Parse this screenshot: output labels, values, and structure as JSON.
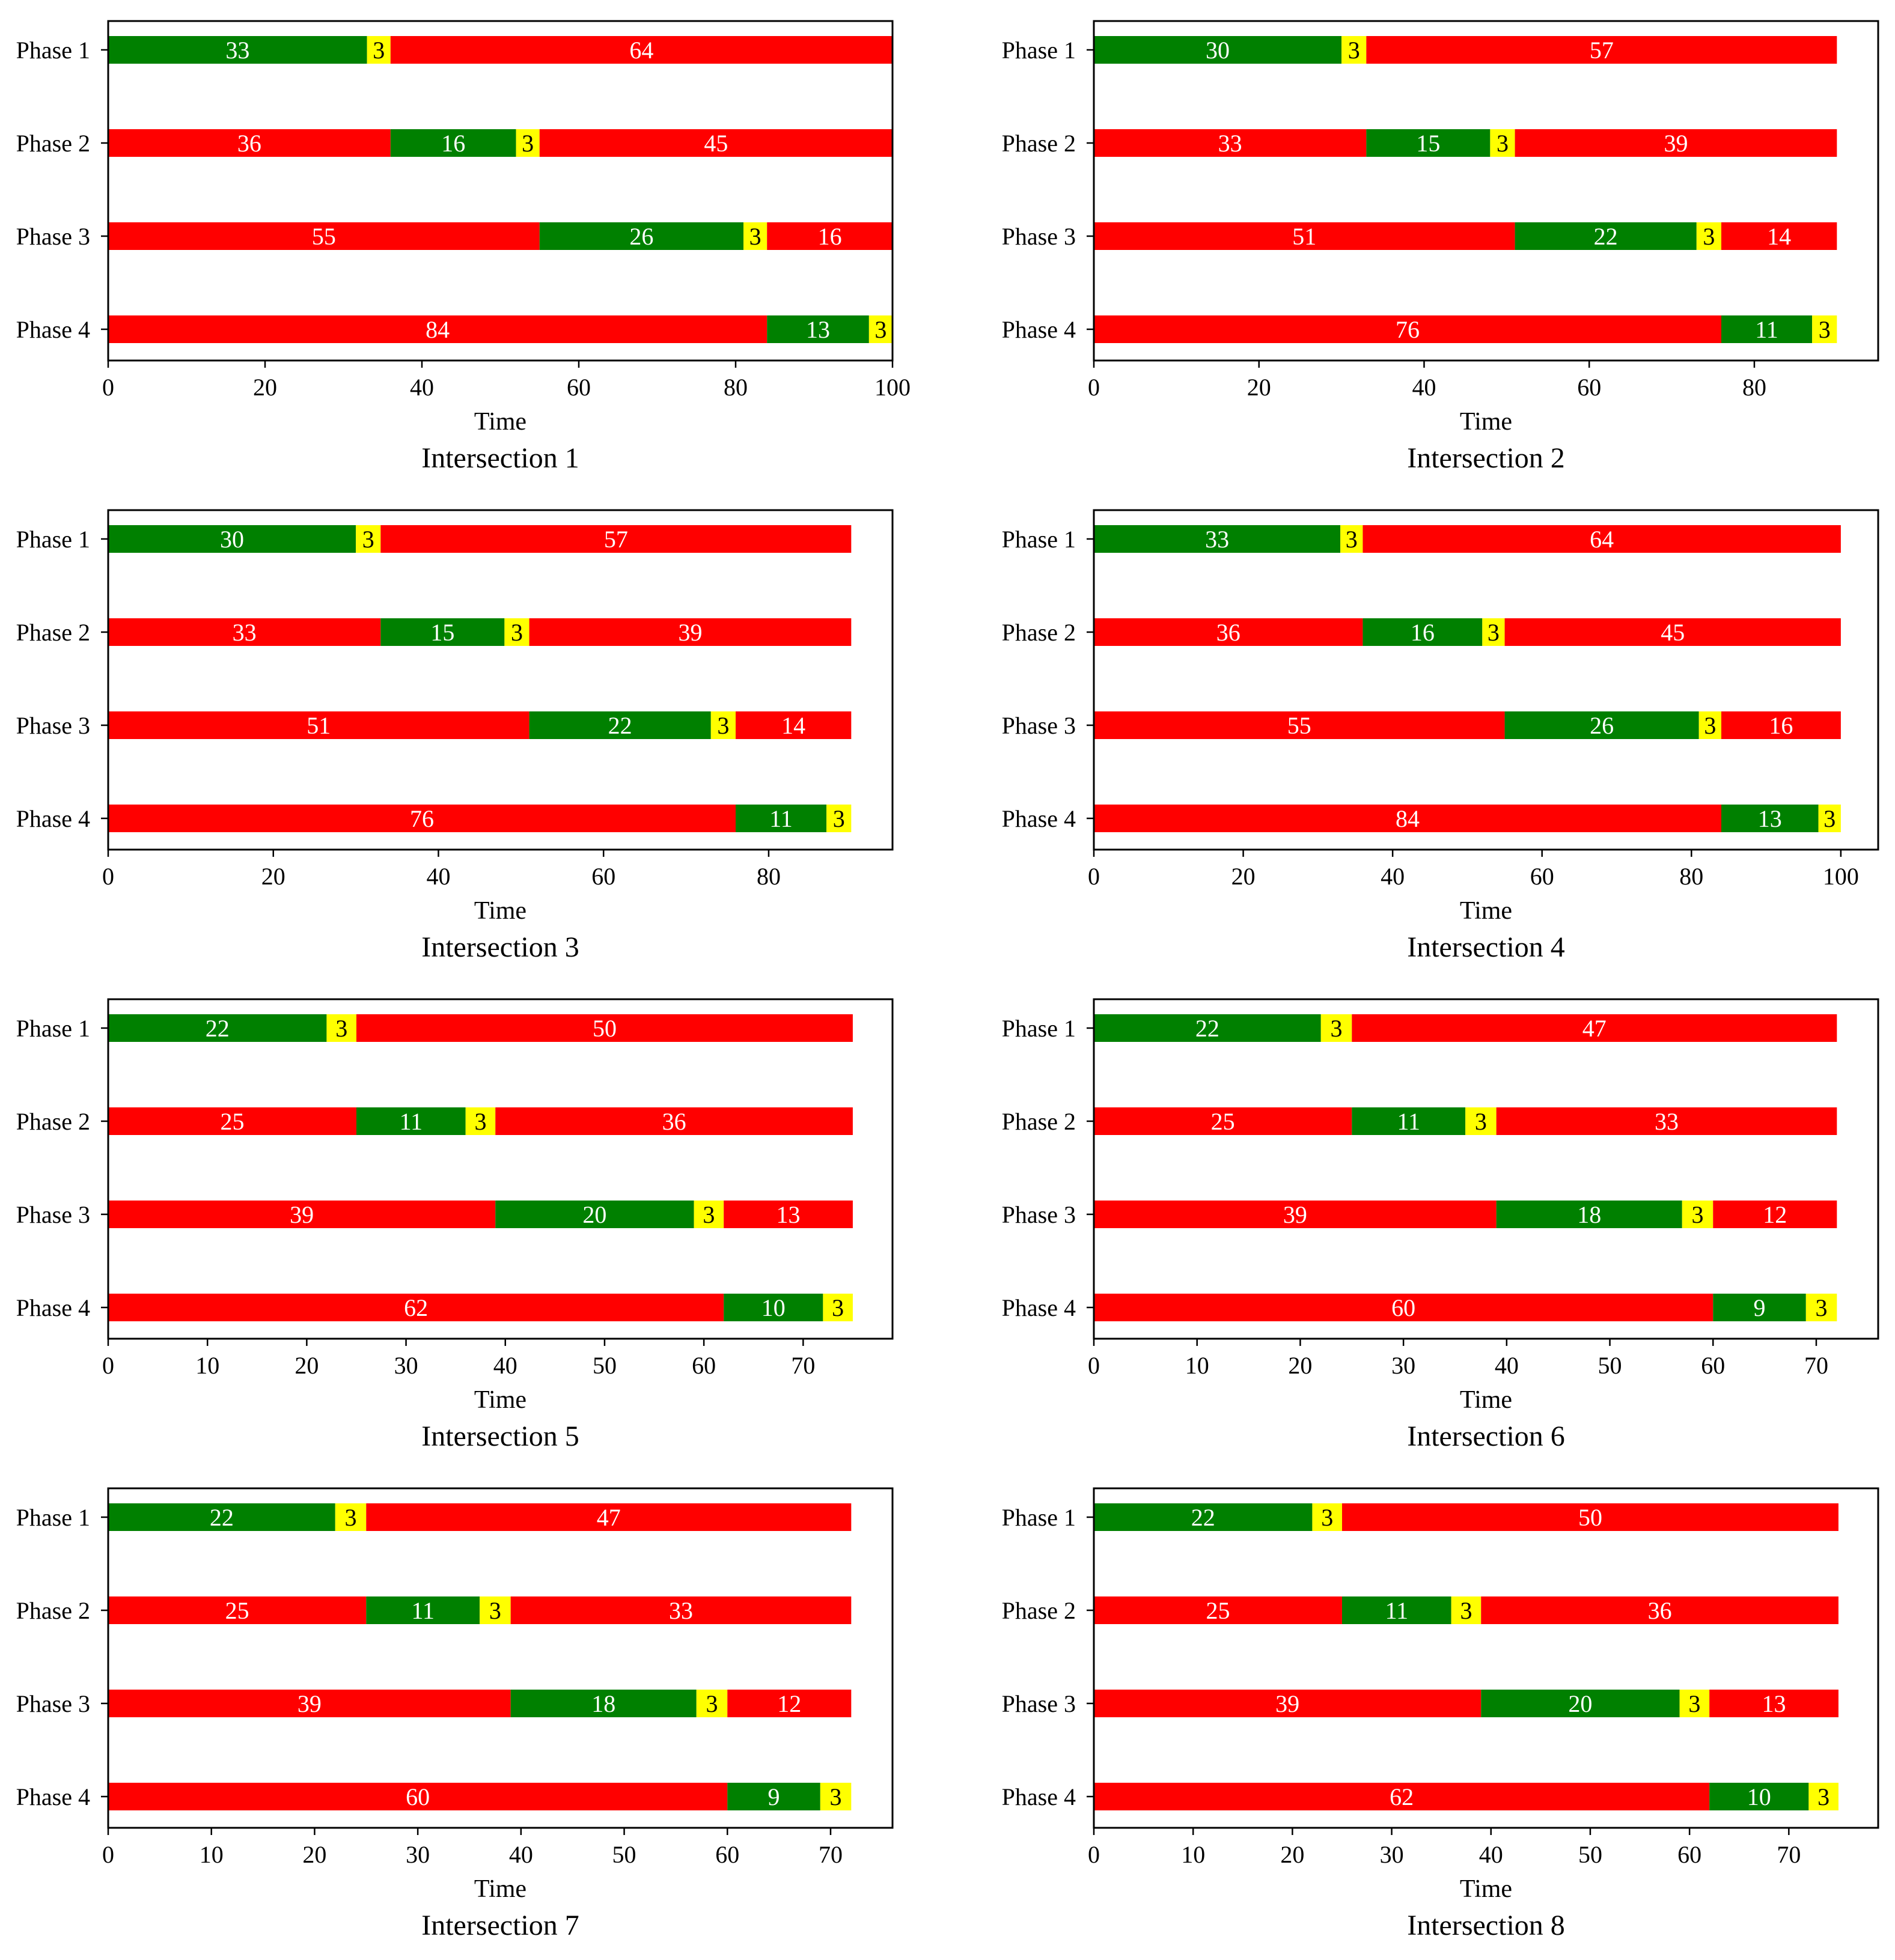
{
  "colors": {
    "green": "#008000",
    "yellow": "#ffff00",
    "red": "#ff0000",
    "axis": "#000000"
  },
  "chart_data": [
    {
      "type": "bar",
      "orientation": "horizontal-stacked",
      "title": "Intersection 1",
      "xlabel": "Time",
      "xlim": [
        0,
        100
      ],
      "xticks": [
        0,
        20,
        40,
        60,
        80,
        100
      ],
      "categories": [
        "Phase 1",
        "Phase 2",
        "Phase 3",
        "Phase 4"
      ],
      "rows": [
        [
          {
            "state": "green",
            "value": 33
          },
          {
            "state": "yellow",
            "value": 3
          },
          {
            "state": "red",
            "value": 64
          }
        ],
        [
          {
            "state": "red",
            "value": 36
          },
          {
            "state": "green",
            "value": 16
          },
          {
            "state": "yellow",
            "value": 3
          },
          {
            "state": "red",
            "value": 45
          }
        ],
        [
          {
            "state": "red",
            "value": 55
          },
          {
            "state": "green",
            "value": 26
          },
          {
            "state": "yellow",
            "value": 3
          },
          {
            "state": "red",
            "value": 16
          }
        ],
        [
          {
            "state": "red",
            "value": 84
          },
          {
            "state": "green",
            "value": 13
          },
          {
            "state": "yellow",
            "value": 3
          }
        ]
      ]
    },
    {
      "type": "bar",
      "orientation": "horizontal-stacked",
      "title": "Intersection 2",
      "xlabel": "Time",
      "xlim": [
        0,
        95
      ],
      "xticks": [
        0,
        20,
        40,
        60,
        80
      ],
      "categories": [
        "Phase 1",
        "Phase 2",
        "Phase 3",
        "Phase 4"
      ],
      "rows": [
        [
          {
            "state": "green",
            "value": 30
          },
          {
            "state": "yellow",
            "value": 3
          },
          {
            "state": "red",
            "value": 57
          }
        ],
        [
          {
            "state": "red",
            "value": 33
          },
          {
            "state": "green",
            "value": 15
          },
          {
            "state": "yellow",
            "value": 3
          },
          {
            "state": "red",
            "value": 39
          }
        ],
        [
          {
            "state": "red",
            "value": 51
          },
          {
            "state": "green",
            "value": 22
          },
          {
            "state": "yellow",
            "value": 3
          },
          {
            "state": "red",
            "value": 14
          }
        ],
        [
          {
            "state": "red",
            "value": 76
          },
          {
            "state": "green",
            "value": 11
          },
          {
            "state": "yellow",
            "value": 3
          }
        ]
      ]
    },
    {
      "type": "bar",
      "orientation": "horizontal-stacked",
      "title": "Intersection 3",
      "xlabel": "Time",
      "xlim": [
        0,
        95
      ],
      "xticks": [
        0,
        20,
        40,
        60,
        80
      ],
      "categories": [
        "Phase 1",
        "Phase 2",
        "Phase 3",
        "Phase 4"
      ],
      "rows": [
        [
          {
            "state": "green",
            "value": 30
          },
          {
            "state": "yellow",
            "value": 3
          },
          {
            "state": "red",
            "value": 57
          }
        ],
        [
          {
            "state": "red",
            "value": 33
          },
          {
            "state": "green",
            "value": 15
          },
          {
            "state": "yellow",
            "value": 3
          },
          {
            "state": "red",
            "value": 39
          }
        ],
        [
          {
            "state": "red",
            "value": 51
          },
          {
            "state": "green",
            "value": 22
          },
          {
            "state": "yellow",
            "value": 3
          },
          {
            "state": "red",
            "value": 14
          }
        ],
        [
          {
            "state": "red",
            "value": 76
          },
          {
            "state": "green",
            "value": 11
          },
          {
            "state": "yellow",
            "value": 3
          }
        ]
      ]
    },
    {
      "type": "bar",
      "orientation": "horizontal-stacked",
      "title": "Intersection 4",
      "xlabel": "Time",
      "xlim": [
        0,
        105
      ],
      "xticks": [
        0,
        20,
        40,
        60,
        80,
        100
      ],
      "categories": [
        "Phase 1",
        "Phase 2",
        "Phase 3",
        "Phase 4"
      ],
      "rows": [
        [
          {
            "state": "green",
            "value": 33
          },
          {
            "state": "yellow",
            "value": 3
          },
          {
            "state": "red",
            "value": 64
          }
        ],
        [
          {
            "state": "red",
            "value": 36
          },
          {
            "state": "green",
            "value": 16
          },
          {
            "state": "yellow",
            "value": 3
          },
          {
            "state": "red",
            "value": 45
          }
        ],
        [
          {
            "state": "red",
            "value": 55
          },
          {
            "state": "green",
            "value": 26
          },
          {
            "state": "yellow",
            "value": 3
          },
          {
            "state": "red",
            "value": 16
          }
        ],
        [
          {
            "state": "red",
            "value": 84
          },
          {
            "state": "green",
            "value": 13
          },
          {
            "state": "yellow",
            "value": 3
          }
        ]
      ]
    },
    {
      "type": "bar",
      "orientation": "horizontal-stacked",
      "title": "Intersection 5",
      "xlabel": "Time",
      "xlim": [
        0,
        79
      ],
      "xticks": [
        0,
        10,
        20,
        30,
        40,
        50,
        60,
        70
      ],
      "categories": [
        "Phase 1",
        "Phase 2",
        "Phase 3",
        "Phase 4"
      ],
      "rows": [
        [
          {
            "state": "green",
            "value": 22
          },
          {
            "state": "yellow",
            "value": 3
          },
          {
            "state": "red",
            "value": 50
          }
        ],
        [
          {
            "state": "red",
            "value": 25
          },
          {
            "state": "green",
            "value": 11
          },
          {
            "state": "yellow",
            "value": 3
          },
          {
            "state": "red",
            "value": 36
          }
        ],
        [
          {
            "state": "red",
            "value": 39
          },
          {
            "state": "green",
            "value": 20
          },
          {
            "state": "yellow",
            "value": 3
          },
          {
            "state": "red",
            "value": 13
          }
        ],
        [
          {
            "state": "red",
            "value": 62
          },
          {
            "state": "green",
            "value": 10
          },
          {
            "state": "yellow",
            "value": 3
          }
        ]
      ]
    },
    {
      "type": "bar",
      "orientation": "horizontal-stacked",
      "title": "Intersection 6",
      "xlabel": "Time",
      "xlim": [
        0,
        76
      ],
      "xticks": [
        0,
        10,
        20,
        30,
        40,
        50,
        60,
        70
      ],
      "categories": [
        "Phase 1",
        "Phase 2",
        "Phase 3",
        "Phase 4"
      ],
      "rows": [
        [
          {
            "state": "green",
            "value": 22
          },
          {
            "state": "yellow",
            "value": 3
          },
          {
            "state": "red",
            "value": 47
          }
        ],
        [
          {
            "state": "red",
            "value": 25
          },
          {
            "state": "green",
            "value": 11
          },
          {
            "state": "yellow",
            "value": 3
          },
          {
            "state": "red",
            "value": 33
          }
        ],
        [
          {
            "state": "red",
            "value": 39
          },
          {
            "state": "green",
            "value": 18
          },
          {
            "state": "yellow",
            "value": 3
          },
          {
            "state": "red",
            "value": 12
          }
        ],
        [
          {
            "state": "red",
            "value": 60
          },
          {
            "state": "green",
            "value": 9
          },
          {
            "state": "yellow",
            "value": 3
          }
        ]
      ]
    },
    {
      "type": "bar",
      "orientation": "horizontal-stacked",
      "title": "Intersection 7",
      "xlabel": "Time",
      "xlim": [
        0,
        76
      ],
      "xticks": [
        0,
        10,
        20,
        30,
        40,
        50,
        60,
        70
      ],
      "categories": [
        "Phase 1",
        "Phase 2",
        "Phase 3",
        "Phase 4"
      ],
      "rows": [
        [
          {
            "state": "green",
            "value": 22
          },
          {
            "state": "yellow",
            "value": 3
          },
          {
            "state": "red",
            "value": 47
          }
        ],
        [
          {
            "state": "red",
            "value": 25
          },
          {
            "state": "green",
            "value": 11
          },
          {
            "state": "yellow",
            "value": 3
          },
          {
            "state": "red",
            "value": 33
          }
        ],
        [
          {
            "state": "red",
            "value": 39
          },
          {
            "state": "green",
            "value": 18
          },
          {
            "state": "yellow",
            "value": 3
          },
          {
            "state": "red",
            "value": 12
          }
        ],
        [
          {
            "state": "red",
            "value": 60
          },
          {
            "state": "green",
            "value": 9
          },
          {
            "state": "yellow",
            "value": 3
          }
        ]
      ]
    },
    {
      "type": "bar",
      "orientation": "horizontal-stacked",
      "title": "Intersection 8",
      "xlabel": "Time",
      "xlim": [
        0,
        79
      ],
      "xticks": [
        0,
        10,
        20,
        30,
        40,
        50,
        60,
        70
      ],
      "categories": [
        "Phase 1",
        "Phase 2",
        "Phase 3",
        "Phase 4"
      ],
      "rows": [
        [
          {
            "state": "green",
            "value": 22
          },
          {
            "state": "yellow",
            "value": 3
          },
          {
            "state": "red",
            "value": 50
          }
        ],
        [
          {
            "state": "red",
            "value": 25
          },
          {
            "state": "green",
            "value": 11
          },
          {
            "state": "yellow",
            "value": 3
          },
          {
            "state": "red",
            "value": 36
          }
        ],
        [
          {
            "state": "red",
            "value": 39
          },
          {
            "state": "green",
            "value": 20
          },
          {
            "state": "yellow",
            "value": 3
          },
          {
            "state": "red",
            "value": 13
          }
        ],
        [
          {
            "state": "red",
            "value": 62
          },
          {
            "state": "green",
            "value": 10
          },
          {
            "state": "yellow",
            "value": 3
          }
        ]
      ]
    }
  ]
}
